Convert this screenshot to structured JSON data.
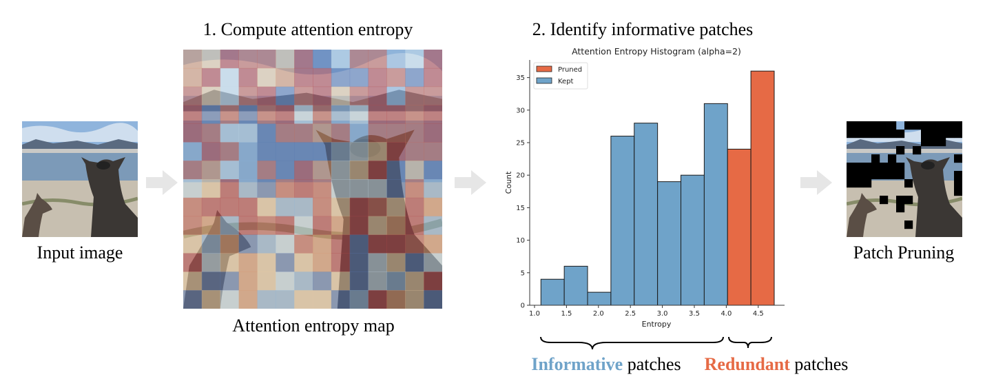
{
  "steps": {
    "step1_title": "1. Compute attention entropy",
    "step2_title": "2. Identify informative patches"
  },
  "captions": {
    "input": "Input image",
    "entropy_map": "Attention entropy map",
    "pruning": "Patch Pruning"
  },
  "groups": {
    "informative_word": "Informative",
    "informative_rest": " patches",
    "redundant_word": "Redundant",
    "redundant_rest": " patches"
  },
  "colors": {
    "kept": "#6fa3c9",
    "pruned": "#e66a45",
    "arrow": "#e6e6e6"
  },
  "chart_data": {
    "type": "bar",
    "title": "Attention Entropy Histogram (alpha=2)",
    "xlabel": "Entropy",
    "ylabel": "Count",
    "xlim": [
      0.95,
      4.9
    ],
    "ylim": [
      0,
      37.5
    ],
    "xticks": [
      "1.0",
      "1.5",
      "2.0",
      "2.5",
      "3.0",
      "3.5",
      "4.0",
      "4.5"
    ],
    "yticks": [
      "0",
      "5",
      "10",
      "15",
      "20",
      "25",
      "30",
      "35"
    ],
    "legend": {
      "position": "top-left",
      "entries": [
        "Pruned",
        "Kept"
      ]
    },
    "bin_edges": [
      1.1,
      1.465,
      1.83,
      2.195,
      2.56,
      2.925,
      3.29,
      3.655,
      4.02,
      4.385,
      4.75
    ],
    "series": [
      {
        "name": "Kept",
        "values": [
          4,
          6,
          2,
          26,
          28,
          19,
          20,
          31,
          0,
          0
        ]
      },
      {
        "name": "Pruned",
        "values": [
          0,
          0,
          0,
          0,
          0,
          0,
          0,
          0,
          24,
          36
        ]
      }
    ]
  }
}
